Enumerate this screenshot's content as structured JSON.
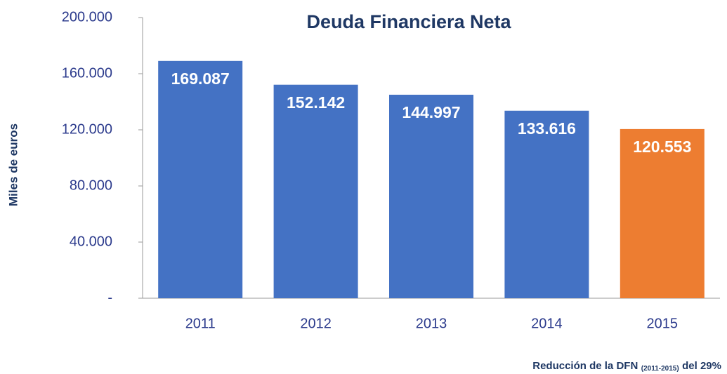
{
  "chart_data": {
    "type": "bar",
    "title": "Deuda Financiera Neta",
    "y_axis_label": "Miles de euros",
    "categories": [
      "2011",
      "2012",
      "2013",
      "2014",
      "2015"
    ],
    "values": [
      169087,
      152142,
      144997,
      133616,
      120553
    ],
    "value_labels": [
      "169.087",
      "152.142",
      "144.997",
      "133.616",
      "120.553"
    ],
    "colors": [
      "#4472c4",
      "#4472c4",
      "#4472c4",
      "#4472c4",
      "#ed7d31"
    ],
    "ylim": [
      0,
      200000
    ],
    "yticks": [
      {
        "value": 0,
        "label": "-"
      },
      {
        "value": 40000,
        "label": "40.000"
      },
      {
        "value": 80000,
        "label": "80.000"
      },
      {
        "value": 120000,
        "label": "120.000"
      },
      {
        "value": 160000,
        "label": "160.000"
      },
      {
        "value": 200000,
        "label": "200.000"
      }
    ],
    "grid": false,
    "annotation": [
      "Reducción de la DFN",
      "(2011-2015)",
      "del 29%"
    ]
  }
}
